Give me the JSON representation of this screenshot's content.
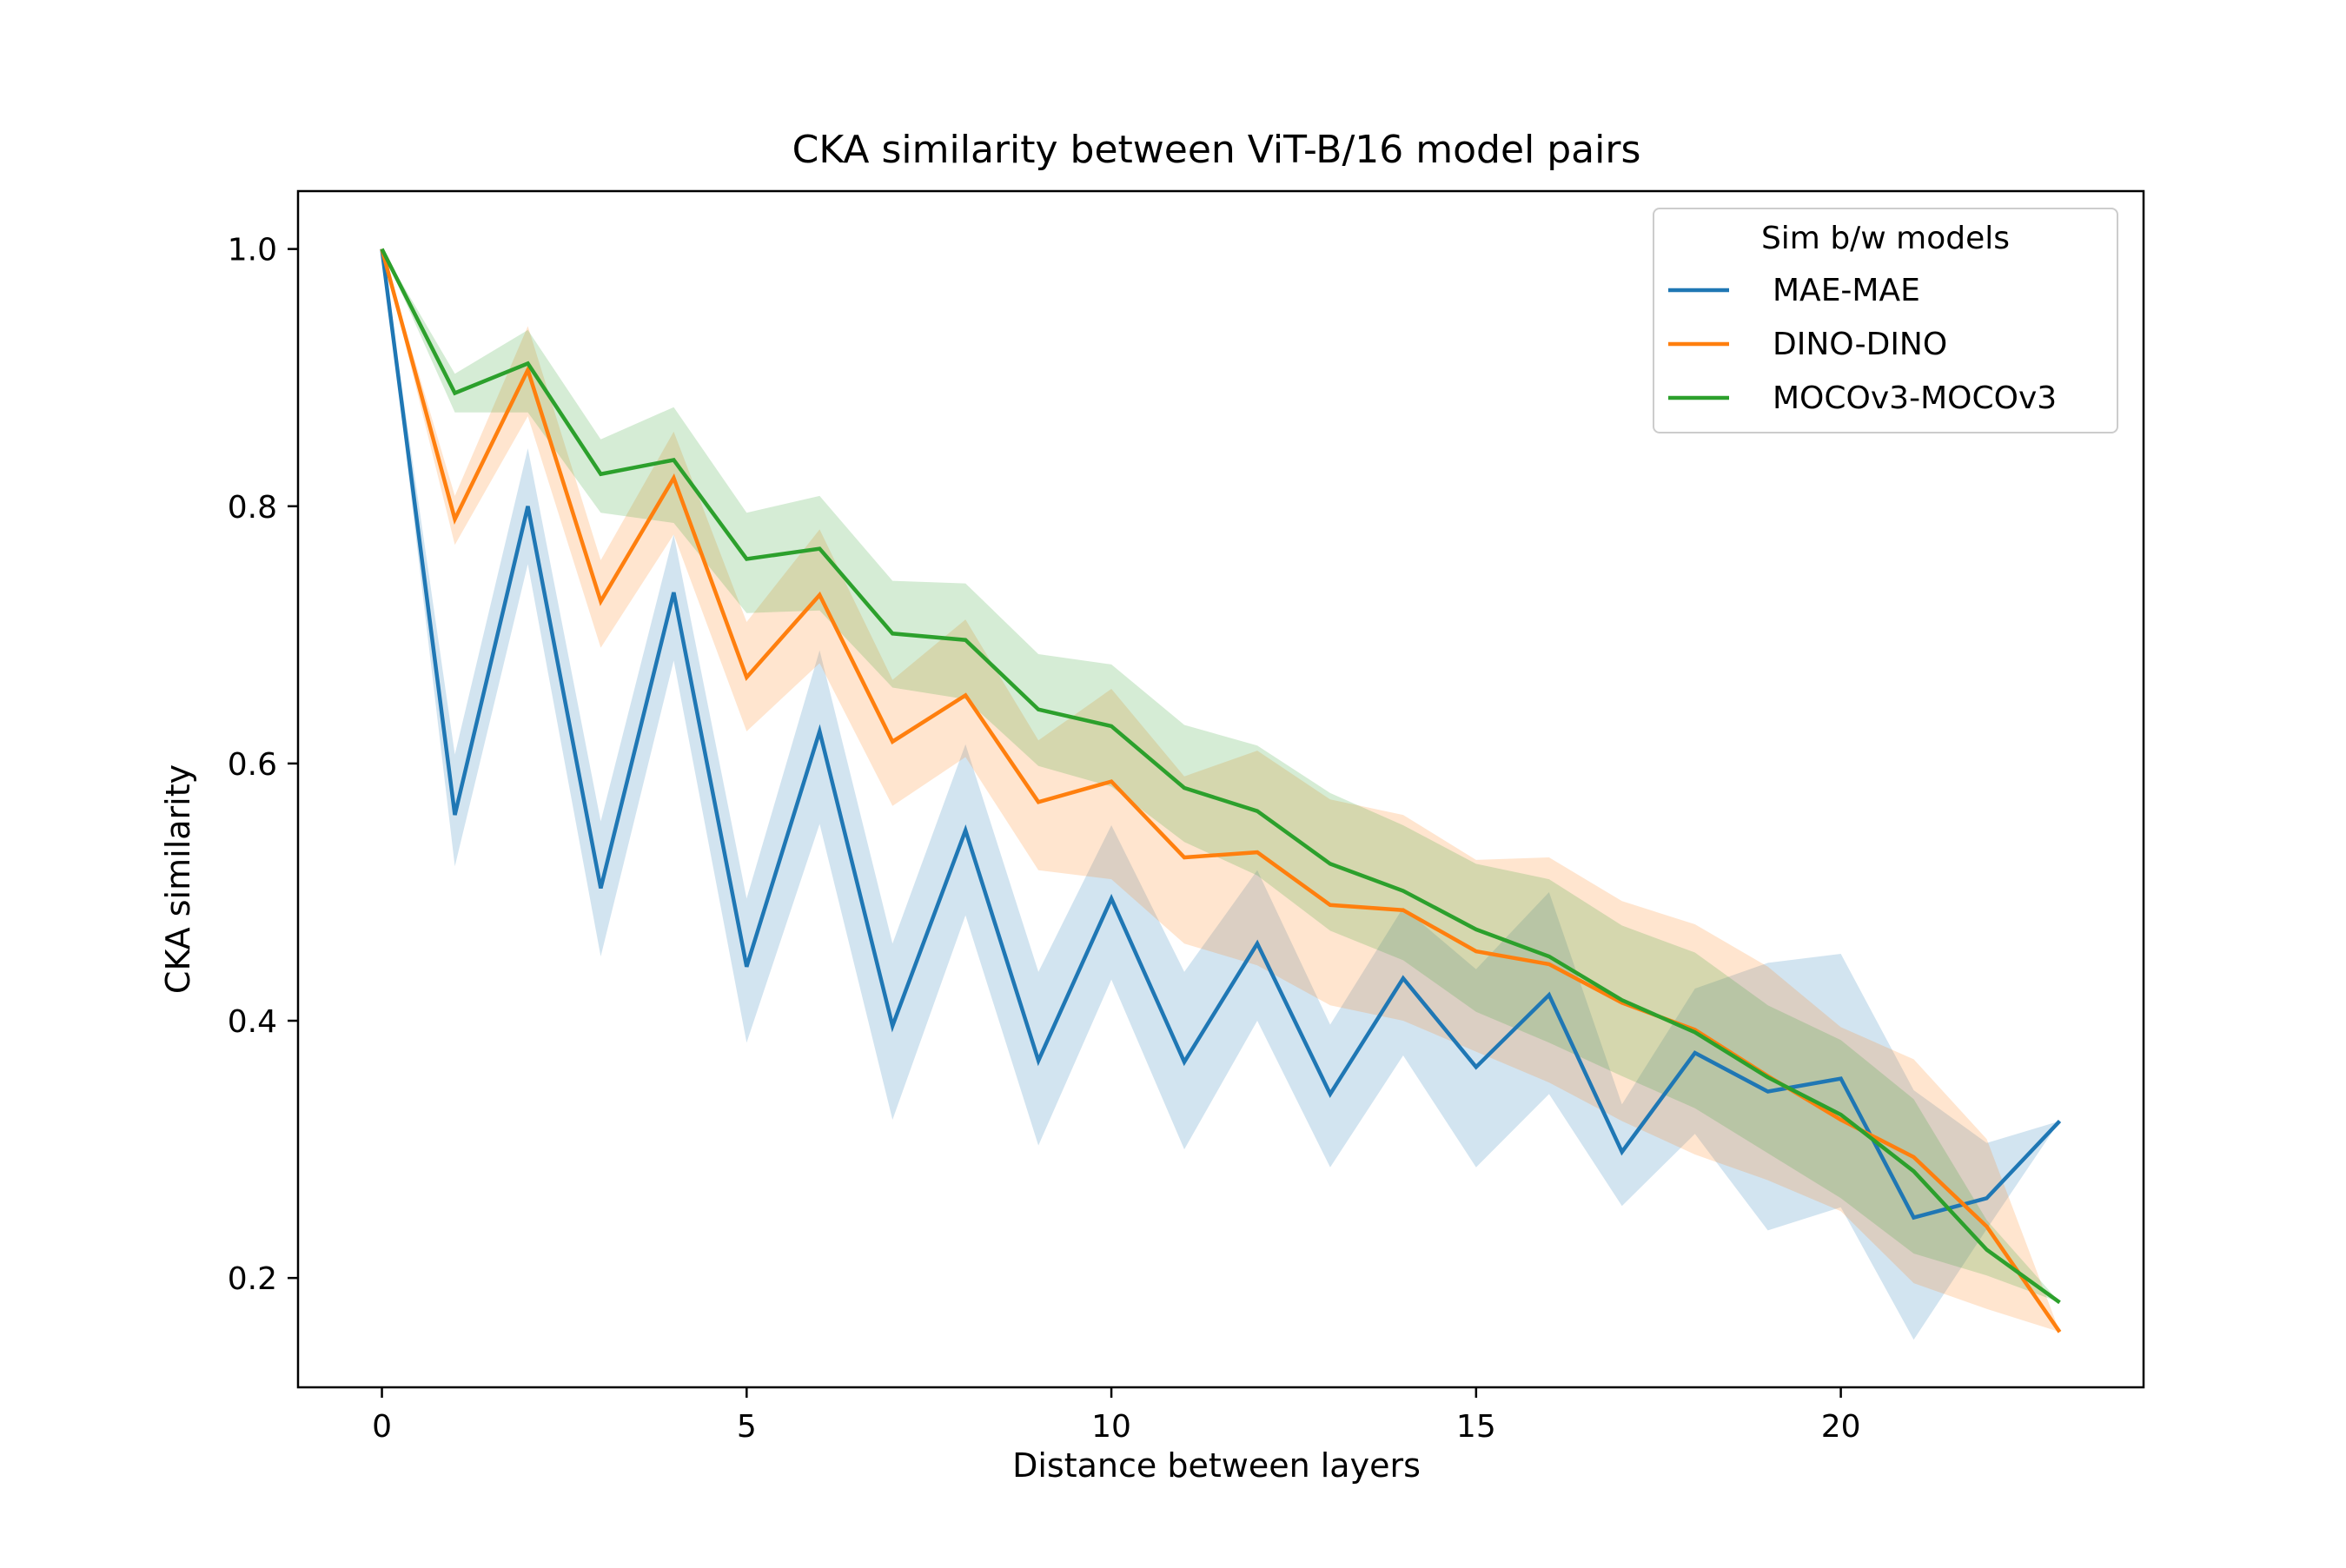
{
  "chart_data": {
    "type": "line",
    "title": "CKA similarity between ViT-B/16 model pairs",
    "xlabel": "Distance between layers",
    "ylabel": "CKA similarity",
    "xlim": [
      -1.15,
      24.15
    ],
    "ylim": [
      0.115,
      1.045
    ],
    "xticks": [
      0,
      5,
      10,
      15,
      20
    ],
    "xtick_labels": [
      "0",
      "5",
      "10",
      "15",
      "20"
    ],
    "yticks": [
      0.2,
      0.4,
      0.6,
      0.8,
      1.0
    ],
    "ytick_labels": [
      "0.2",
      "0.4",
      "0.6",
      "0.8",
      "1.0"
    ],
    "grid": false,
    "legend": {
      "title": "Sim b/w models",
      "position": "top-right"
    },
    "x": [
      0,
      1,
      2,
      3,
      4,
      5,
      6,
      7,
      8,
      9,
      10,
      11,
      12,
      13,
      14,
      15,
      16,
      17,
      18,
      19,
      20,
      21,
      22,
      23
    ],
    "series": [
      {
        "name": "MAE-MAE",
        "color": "#1f77b4",
        "values": [
          1.0,
          0.56,
          0.8,
          0.503,
          0.733,
          0.442,
          0.625,
          0.396,
          0.548,
          0.369,
          0.495,
          0.368,
          0.46,
          0.343,
          0.433,
          0.364,
          0.42,
          0.298,
          0.375,
          0.345,
          0.355,
          0.247,
          0.262,
          0.322
        ],
        "lower": [
          1.0,
          0.52,
          0.755,
          0.45,
          0.68,
          0.383,
          0.553,
          0.323,
          0.482,
          0.303,
          0.432,
          0.3,
          0.4,
          0.286,
          0.373,
          0.286,
          0.343,
          0.256,
          0.312,
          0.237,
          0.255,
          0.152,
          0.238,
          0.322
        ],
        "upper": [
          1.0,
          0.607,
          0.845,
          0.555,
          0.778,
          0.495,
          0.688,
          0.46,
          0.615,
          0.438,
          0.552,
          0.438,
          0.517,
          0.397,
          0.488,
          0.44,
          0.5,
          0.335,
          0.425,
          0.445,
          0.452,
          0.346,
          0.305,
          0.322
        ]
      },
      {
        "name": "DINO-DINO",
        "color": "#ff7f0e",
        "values": [
          1.0,
          0.79,
          0.906,
          0.726,
          0.822,
          0.667,
          0.731,
          0.617,
          0.653,
          0.57,
          0.586,
          0.527,
          0.531,
          0.49,
          0.486,
          0.454,
          0.444,
          0.414,
          0.393,
          0.357,
          0.323,
          0.294,
          0.24,
          0.158
        ],
        "lower": [
          1.0,
          0.77,
          0.87,
          0.69,
          0.778,
          0.625,
          0.678,
          0.567,
          0.605,
          0.517,
          0.51,
          0.46,
          0.443,
          0.412,
          0.4,
          0.376,
          0.352,
          0.322,
          0.296,
          0.276,
          0.252,
          0.196,
          0.176,
          0.158
        ],
        "upper": [
          1.0,
          0.808,
          0.94,
          0.758,
          0.858,
          0.71,
          0.782,
          0.665,
          0.712,
          0.618,
          0.658,
          0.59,
          0.61,
          0.572,
          0.56,
          0.525,
          0.527,
          0.493,
          0.475,
          0.442,
          0.395,
          0.37,
          0.308,
          0.158
        ]
      },
      {
        "name": "MOCOv3-MOCOv3",
        "color": "#2ca02c",
        "values": [
          1.0,
          0.888,
          0.911,
          0.825,
          0.836,
          0.759,
          0.767,
          0.701,
          0.696,
          0.642,
          0.629,
          0.581,
          0.563,
          0.522,
          0.501,
          0.471,
          0.45,
          0.416,
          0.391,
          0.356,
          0.327,
          0.283,
          0.222,
          0.181
        ],
        "lower": [
          1.0,
          0.873,
          0.873,
          0.795,
          0.787,
          0.717,
          0.719,
          0.659,
          0.65,
          0.598,
          0.582,
          0.539,
          0.513,
          0.47,
          0.447,
          0.407,
          0.383,
          0.357,
          0.332,
          0.297,
          0.262,
          0.219,
          0.202,
          0.181
        ],
        "upper": [
          1.0,
          0.903,
          0.937,
          0.852,
          0.877,
          0.795,
          0.808,
          0.742,
          0.74,
          0.685,
          0.677,
          0.63,
          0.614,
          0.577,
          0.552,
          0.522,
          0.51,
          0.474,
          0.453,
          0.412,
          0.385,
          0.339,
          0.245,
          0.181
        ]
      }
    ]
  }
}
